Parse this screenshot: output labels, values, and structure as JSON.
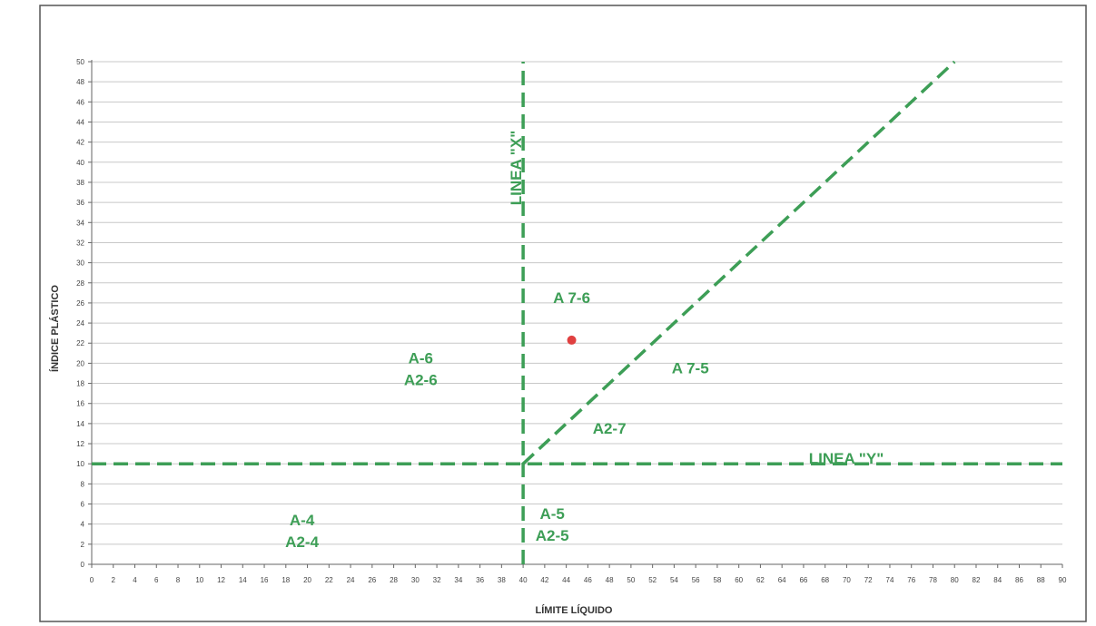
{
  "chart_data": {
    "type": "scatter",
    "xlabel": "LÍMITE LÍQUIDO",
    "ylabel": "ÍNDICE PLÁSTICO",
    "xlim": [
      0,
      90
    ],
    "ylim": [
      0,
      50
    ],
    "xticks": [
      0,
      2,
      4,
      6,
      8,
      10,
      12,
      14,
      16,
      18,
      20,
      22,
      24,
      26,
      28,
      30,
      32,
      34,
      36,
      38,
      40,
      42,
      44,
      46,
      48,
      50,
      52,
      54,
      56,
      58,
      60,
      62,
      64,
      66,
      68,
      70,
      72,
      74,
      76,
      78,
      80,
      82,
      84,
      86,
      88,
      90
    ],
    "yticks": [
      0,
      2,
      4,
      6,
      8,
      10,
      12,
      14,
      16,
      18,
      20,
      22,
      24,
      26,
      28,
      30,
      32,
      34,
      36,
      38,
      40,
      42,
      44,
      46,
      48,
      50
    ],
    "grid": "horizontal",
    "points": [
      {
        "x": 44.5,
        "y": 22.3
      }
    ],
    "lines": [
      {
        "label": "LINEA \"X\"",
        "x1": 40,
        "y1": 0,
        "x2": 40,
        "y2": 50
      },
      {
        "label": "LINEA \"Y\"",
        "x1": 0,
        "y1": 10,
        "x2": 90,
        "y2": 10
      },
      {
        "label": "",
        "x1": 40,
        "y1": 10,
        "x2": 80,
        "y2": 50
      }
    ],
    "zones": [
      {
        "lines": [
          "A 7-6"
        ],
        "x": 44.5,
        "y": 26
      },
      {
        "lines": [
          "A-6",
          "A2-6"
        ],
        "x": 30.5,
        "y": 20
      },
      {
        "lines": [
          "A 7-5"
        ],
        "x": 55.5,
        "y": 19
      },
      {
        "lines": [
          "A2-7"
        ],
        "x": 48,
        "y": 13
      },
      {
        "lines": [
          "A-4",
          "A2-4"
        ],
        "x": 19.5,
        "y": 3.9
      },
      {
        "lines": [
          "A-5",
          "A2-5"
        ],
        "x": 42.7,
        "y": 4.5
      }
    ],
    "colors": {
      "guide": "#3d9e56",
      "point": "#e04040",
      "grid": "#c8c8c8",
      "text": "#444444"
    }
  }
}
